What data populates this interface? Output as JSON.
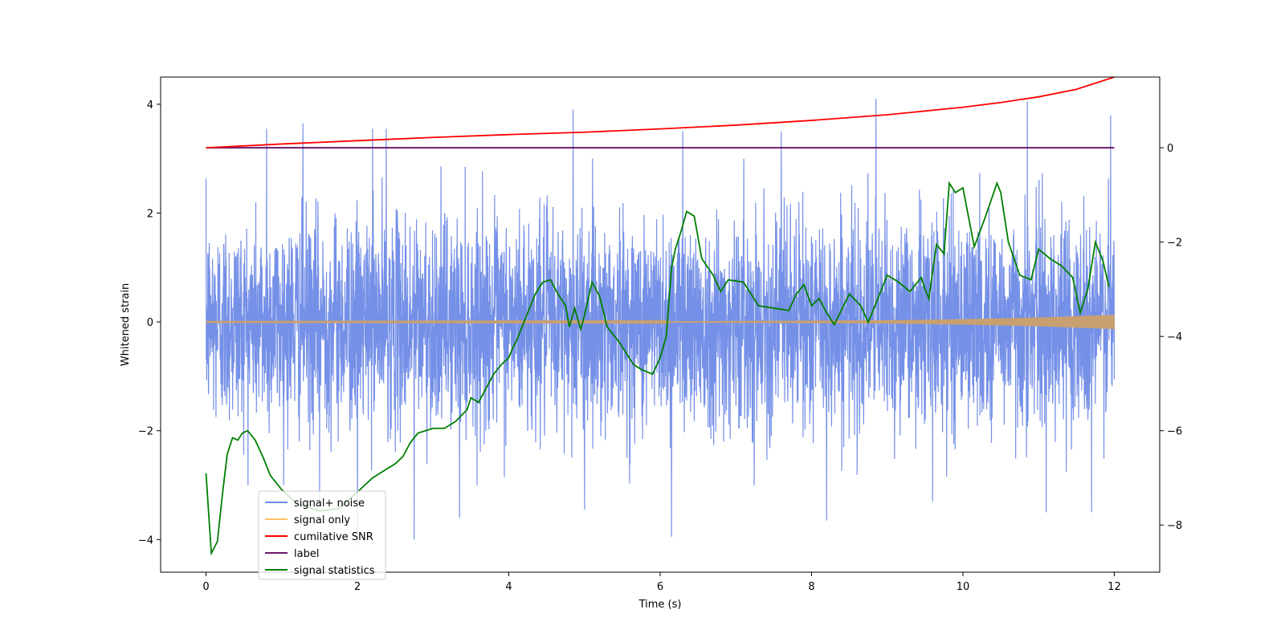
{
  "chart_data": {
    "type": "line",
    "title": "",
    "xlabel": "Time (s)",
    "ylabel": "Whitened strain",
    "y2label": "",
    "xlim": [
      -0.6,
      12.6
    ],
    "ylim": [
      -4.6,
      4.5
    ],
    "y2lim": [
      -9.0,
      1.5
    ],
    "x_ticks": [
      0,
      2,
      4,
      6,
      8,
      10,
      12
    ],
    "y_ticks": [
      -4,
      -2,
      0,
      2,
      4
    ],
    "y2_ticks": [
      -8,
      -6,
      -4,
      -2,
      0
    ],
    "legend_position": "lower-left",
    "grid": false,
    "series": [
      {
        "name": "signal+ noise",
        "color": "#6e8ae6",
        "axis": "left",
        "style": "dense noise, approx. 1 sigma, peaks to about +4.1 and -4.0",
        "x_range": [
          0,
          12
        ],
        "spikes": [
          [
            0.8,
            3.55
          ],
          [
            1.28,
            3.65
          ],
          [
            2.2,
            3.55
          ],
          [
            2.38,
            3.55
          ],
          [
            4.85,
            3.9
          ],
          [
            6.3,
            3.5
          ],
          [
            7.6,
            3.5
          ],
          [
            8.85,
            4.1
          ],
          [
            10.85,
            4.05
          ],
          [
            11.95,
            3.8
          ],
          [
            1.5,
            -3.3
          ],
          [
            2.0,
            -4.1
          ],
          [
            2.75,
            -4.0
          ],
          [
            3.35,
            -3.6
          ],
          [
            5.0,
            -3.45
          ],
          [
            6.15,
            -3.95
          ],
          [
            8.2,
            -3.65
          ],
          [
            9.6,
            -3.3
          ],
          [
            11.1,
            -3.5
          ],
          [
            11.7,
            -3.5
          ]
        ]
      },
      {
        "name": "signal only",
        "color": "#ffbf66",
        "axis": "left",
        "style": "chirp with envelope growing from 0 to about 0.12 at 12 s",
        "envelope": [
          [
            0,
            0.005
          ],
          [
            6,
            0.01
          ],
          [
            9,
            0.03
          ],
          [
            10,
            0.05
          ],
          [
            11,
            0.08
          ],
          [
            12,
            0.13
          ]
        ]
      },
      {
        "name": "cumilative SNR",
        "color": "#ff0000",
        "axis": "right",
        "x": [
          0,
          1,
          2,
          3,
          4,
          5,
          6,
          7,
          8,
          9,
          10,
          10.5,
          11,
          11.5,
          12
        ],
        "values": [
          0.0,
          0.08,
          0.15,
          0.22,
          0.28,
          0.33,
          0.4,
          0.48,
          0.58,
          0.7,
          0.86,
          0.96,
          1.08,
          1.24,
          1.5
        ]
      },
      {
        "name": "label",
        "color": "#6a1a6a",
        "axis": "right",
        "x": [
          0,
          12
        ],
        "values": [
          0,
          0
        ]
      },
      {
        "name": "signal statistics",
        "color": "#007f00",
        "axis": "right",
        "x": [
          0,
          0.02,
          0.07,
          0.15,
          0.22,
          0.28,
          0.35,
          0.42,
          0.48,
          0.55,
          0.65,
          0.75,
          0.85,
          1.0,
          1.2,
          1.5,
          1.75,
          2.0,
          2.2,
          2.35,
          2.5,
          2.6,
          2.7,
          2.8,
          3.0,
          3.15,
          3.3,
          3.45,
          3.5,
          3.6,
          3.7,
          3.8,
          3.9,
          4.0,
          4.05,
          4.1,
          4.2,
          4.35,
          4.45,
          4.55,
          4.65,
          4.75,
          4.8,
          4.87,
          4.95,
          5.0,
          5.1,
          5.2,
          5.3,
          5.45,
          5.55,
          5.65,
          5.75,
          5.9,
          6.0,
          6.08,
          6.15,
          6.2,
          6.28,
          6.35,
          6.45,
          6.55,
          6.7,
          6.8,
          6.9,
          7.1,
          7.3,
          7.5,
          7.7,
          7.8,
          7.9,
          8.0,
          8.1,
          8.2,
          8.3,
          8.5,
          8.65,
          8.75,
          8.85,
          9.0,
          9.15,
          9.3,
          9.45,
          9.5,
          9.55,
          9.65,
          9.75,
          9.82,
          9.9,
          10.0,
          10.15,
          10.3,
          10.45,
          10.5,
          10.6,
          10.75,
          10.9,
          11.0,
          11.15,
          11.3,
          11.45,
          11.55,
          11.65,
          11.75,
          11.85,
          11.93
        ]
      }
    ]
  }
}
